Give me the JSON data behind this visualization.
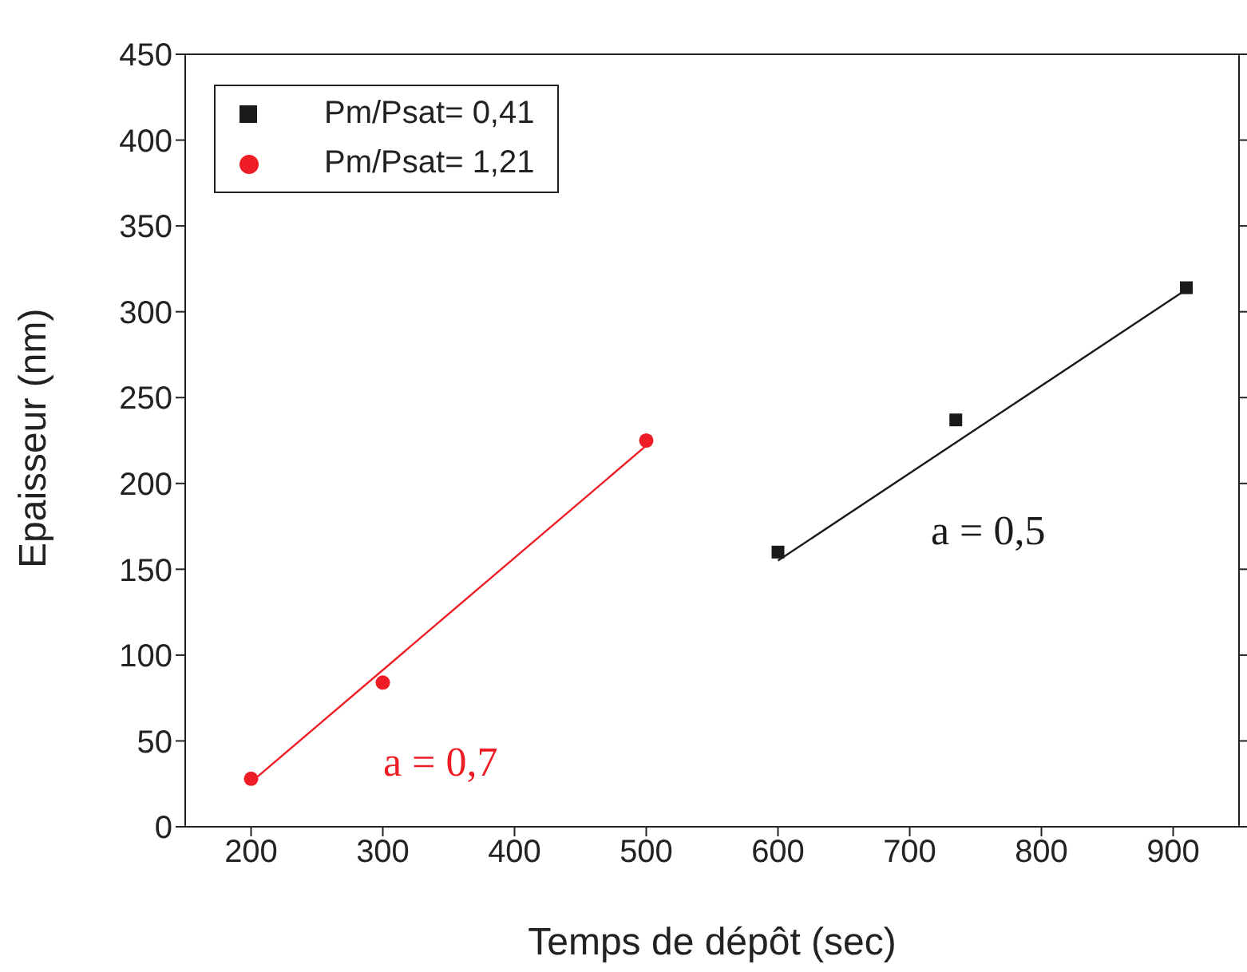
{
  "chart_data": {
    "type": "scatter",
    "xlabel": "Temps de dépôt (sec)",
    "ylabel": "Epaisseur (nm)",
    "xlim": [
      150,
      950
    ],
    "xticks": [
      200,
      300,
      400,
      500,
      600,
      700,
      800,
      900
    ],
    "ylim": [
      0,
      450
    ],
    "yticks": [
      0,
      50,
      100,
      150,
      200,
      250,
      300,
      350,
      400,
      450
    ],
    "legend": "top left",
    "series": [
      {
        "name": "Pm/Psat= 0,41",
        "color": "#1a1a1a",
        "marker": "square",
        "x": [
          600,
          735,
          910
        ],
        "values": [
          160,
          237,
          314
        ]
      },
      {
        "name": "Pm/Psat= 1,21",
        "color": "#ee1c25",
        "marker": "circle",
        "x": [
          200,
          300,
          500
        ],
        "values": [
          28,
          84,
          225
        ]
      },
      {
        "type": "line",
        "color": "#1a1a1a",
        "marker": "none",
        "x": [
          600,
          910
        ],
        "values": [
          155,
          313
        ]
      },
      {
        "type": "line",
        "color": "#ee1c25",
        "marker": "none",
        "x": [
          200,
          500
        ],
        "values": [
          26,
          222
        ]
      }
    ],
    "annotations": [
      "a = 0,5",
      "a = 0,7"
    ]
  }
}
